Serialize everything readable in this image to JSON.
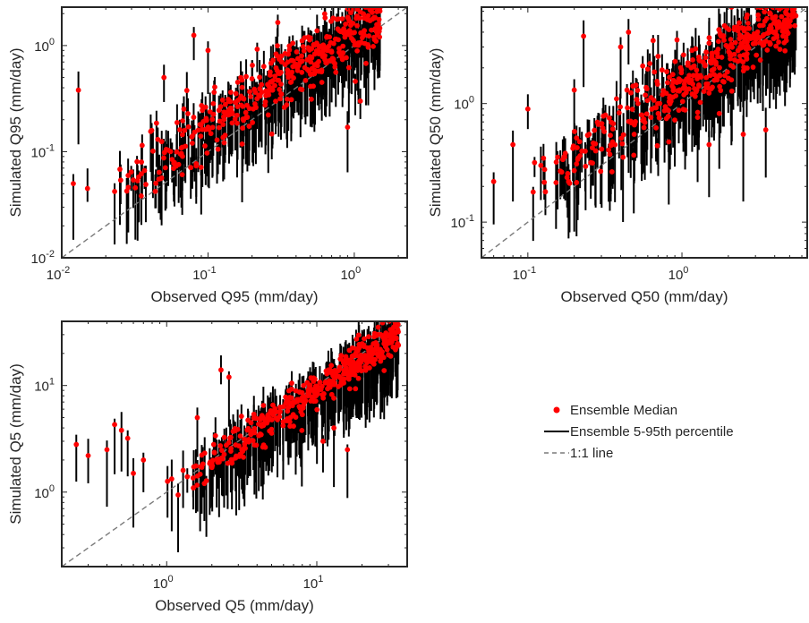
{
  "chart_data": [
    {
      "id": "q95",
      "type": "scatter",
      "xscale": "log",
      "yscale": "log",
      "xlim": [
        0.01,
        2.3
      ],
      "ylim": [
        0.01,
        2.3
      ],
      "xlabel": "Observed Q95 (mm/day)",
      "ylabel": "Simulated Q95 (mm/day)",
      "xticks": [
        {
          "value": 0.01,
          "base": "10",
          "exp": "-2"
        },
        {
          "value": 0.1,
          "base": "10",
          "exp": "-1"
        },
        {
          "value": 1,
          "base": "10",
          "exp": "0"
        }
      ],
      "yticks": [
        {
          "value": 0.01,
          "base": "10",
          "exp": "-2"
        },
        {
          "value": 0.1,
          "base": "10",
          "exp": "-1"
        },
        {
          "value": 1,
          "base": "10",
          "exp": "0"
        }
      ],
      "trend": {
        "x_range": [
          0.02,
          1.5
        ],
        "slope": 0.9,
        "intercept": 1.4,
        "scatter": 0.28
      },
      "outliers": [
        [
          0.013,
          0.38
        ],
        [
          0.012,
          0.05
        ],
        [
          0.08,
          1.25
        ],
        [
          0.3,
          1.65
        ],
        [
          0.1,
          0.9
        ],
        [
          0.015,
          0.045
        ],
        [
          1.1,
          0.3
        ],
        [
          0.6,
          0.45
        ],
        [
          0.9,
          0.17
        ],
        [
          0.05,
          0.5
        ]
      ]
    },
    {
      "id": "q50",
      "type": "scatter",
      "xscale": "log",
      "yscale": "log",
      "xlim": [
        0.05,
        6.5
      ],
      "ylim": [
        0.05,
        6.5
      ],
      "xlabel": "Observed Q50 (mm/day)",
      "ylabel": "Simulated Q50 (mm/day)",
      "xticks": [
        {
          "value": 0.1,
          "base": "10",
          "exp": "-1"
        },
        {
          "value": 1,
          "base": "10",
          "exp": "0"
        }
      ],
      "yticks": [
        {
          "value": 0.1,
          "base": "10",
          "exp": "-1"
        },
        {
          "value": 1,
          "base": "10",
          "exp": "0"
        }
      ],
      "trend": {
        "x_range": [
          0.09,
          5.5
        ],
        "slope": 0.85,
        "intercept": 1.45,
        "scatter": 0.3
      },
      "outliers": [
        [
          0.23,
          3.7
        ],
        [
          0.1,
          0.9
        ],
        [
          0.55,
          0.8
        ],
        [
          0.25,
          0.55
        ],
        [
          0.45,
          4.0
        ],
        [
          0.65,
          3.4
        ],
        [
          0.7,
          2.5
        ],
        [
          0.4,
          3.0
        ],
        [
          0.08,
          0.45
        ],
        [
          2.5,
          0.55
        ],
        [
          3.5,
          0.6
        ],
        [
          0.06,
          0.22
        ],
        [
          0.2,
          1.3
        ],
        [
          0.13,
          0.18
        ],
        [
          1.5,
          0.45
        ]
      ]
    },
    {
      "id": "q5",
      "type": "scatter",
      "xscale": "log",
      "yscale": "log",
      "xlim": [
        0.2,
        40
      ],
      "ylim": [
        0.2,
        40
      ],
      "xlabel": "Observed Q5 (mm/day)",
      "ylabel": "Simulated Q5 (mm/day)",
      "xticks": [
        {
          "value": 1,
          "base": "10",
          "exp": "0"
        },
        {
          "value": 10,
          "base": "10",
          "exp": "1"
        }
      ],
      "yticks": [
        {
          "value": 1,
          "base": "10",
          "exp": "0"
        },
        {
          "value": 10,
          "base": "10",
          "exp": "1"
        }
      ],
      "trend": {
        "x_range": [
          0.9,
          35
        ],
        "slope": 0.95,
        "intercept": 1.05,
        "scatter": 0.18
      },
      "outliers": [
        [
          0.25,
          2.8
        ],
        [
          0.3,
          2.2
        ],
        [
          0.45,
          4.3
        ],
        [
          0.5,
          3.8
        ],
        [
          2.3,
          14.0
        ],
        [
          2.6,
          12.0
        ],
        [
          1.6,
          5.0
        ],
        [
          0.6,
          1.5
        ],
        [
          0.4,
          2.5
        ],
        [
          16,
          2.5
        ],
        [
          11,
          3.0
        ],
        [
          13,
          4.0
        ],
        [
          0.7,
          2.0
        ],
        [
          0.55,
          3.2
        ]
      ]
    }
  ],
  "legend": {
    "placement": "right of bottom-left panel",
    "entries": [
      {
        "label": "Ensemble Median",
        "style": "red-dot"
      },
      {
        "label": "Ensemble 5-95th percentile",
        "style": "black-line"
      },
      {
        "label": "1:1 line",
        "style": "grey-dashed"
      }
    ]
  },
  "colors": {
    "median": "#ff0000",
    "range": "#000000",
    "one_to_one": "#7a7a7a",
    "axes": "#262626"
  }
}
